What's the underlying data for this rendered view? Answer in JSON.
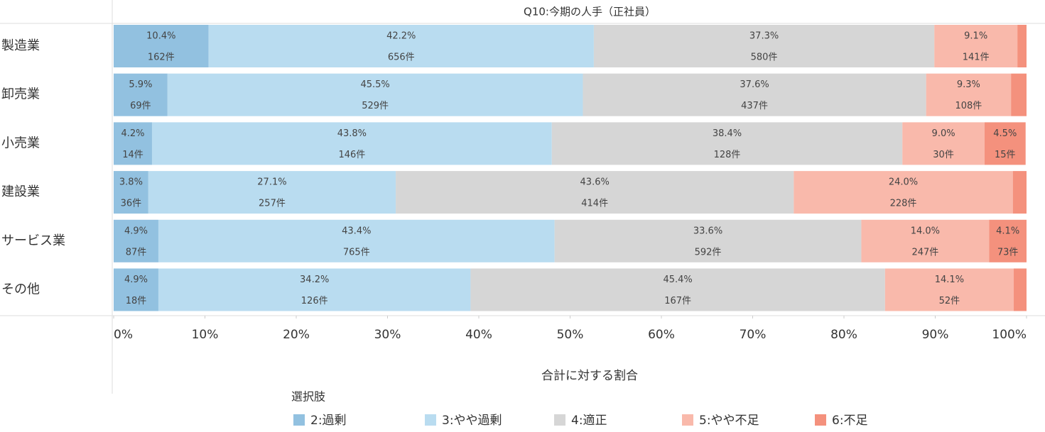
{
  "chart_data": {
    "type": "stacked-bar-horizontal",
    "title": "Q10:今期の人手（正社員）",
    "x_label": "合計に対する割合",
    "legend_title": "選択肢",
    "categories": [
      "製造業",
      "卸売業",
      "小売業",
      "建設業",
      "サービス業",
      "その他"
    ],
    "xlim": [
      0,
      100
    ],
    "xticks": [
      {
        "value": 0,
        "label": "0%"
      },
      {
        "value": 10,
        "label": "10%"
      },
      {
        "value": 20,
        "label": "20%"
      },
      {
        "value": 30,
        "label": "30%"
      },
      {
        "value": 40,
        "label": "40%"
      },
      {
        "value": 50,
        "label": "50%"
      },
      {
        "value": 60,
        "label": "60%"
      },
      {
        "value": 70,
        "label": "70%"
      },
      {
        "value": 80,
        "label": "80%"
      },
      {
        "value": 90,
        "label": "90%"
      },
      {
        "value": 100,
        "label": "100%"
      }
    ],
    "series": [
      {
        "name": "2:過剰",
        "color": "#92c1e0",
        "values": [
          10.4,
          5.9,
          4.2,
          3.8,
          4.9,
          4.9
        ],
        "value_labels": [
          "10.4%",
          "5.9%",
          "4.2%",
          "3.8%",
          "4.9%",
          "4.9%"
        ],
        "count_labels": [
          "162件",
          "69件",
          "14件",
          "36件",
          "87件",
          "18件"
        ]
      },
      {
        "name": "3:やや過剰",
        "color": "#b9dcf0",
        "values": [
          42.2,
          45.5,
          43.8,
          27.1,
          43.4,
          34.2
        ],
        "value_labels": [
          "42.2%",
          "45.5%",
          "43.8%",
          "27.1%",
          "43.4%",
          "34.2%"
        ],
        "count_labels": [
          "656件",
          "529件",
          "146件",
          "257件",
          "765件",
          "126件"
        ]
      },
      {
        "name": "4:適正",
        "color": "#d6d6d6",
        "values": [
          37.3,
          37.6,
          38.4,
          43.6,
          33.6,
          45.4
        ],
        "value_labels": [
          "37.3%",
          "37.6%",
          "38.4%",
          "43.6%",
          "33.6%",
          "45.4%"
        ],
        "count_labels": [
          "580件",
          "437件",
          "128件",
          "414件",
          "592件",
          "167件"
        ]
      },
      {
        "name": "5:やや不足",
        "color": "#f9b9ab",
        "values": [
          9.1,
          9.3,
          9.0,
          24.0,
          14.0,
          14.1
        ],
        "value_labels": [
          "9.1%",
          "9.3%",
          "9.0%",
          "24.0%",
          "14.0%",
          "14.1%"
        ],
        "count_labels": [
          "141件",
          "108件",
          "30件",
          "228件",
          "247件",
          "52件"
        ]
      },
      {
        "name": "6:不足",
        "color": "#f4917d",
        "values": [
          1.0,
          1.7,
          4.5,
          1.5,
          4.1,
          1.4
        ],
        "value_labels": [
          null,
          null,
          "4.5%",
          null,
          "4.1%",
          null
        ],
        "count_labels": [
          null,
          null,
          "15件",
          null,
          "73件",
          null
        ]
      }
    ]
  }
}
